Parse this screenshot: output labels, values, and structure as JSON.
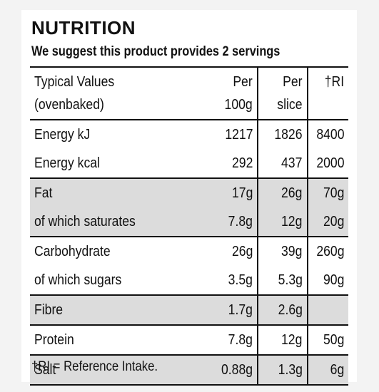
{
  "title": "NUTRITION",
  "subtitle": "We suggest this product provides 2 servings",
  "header": {
    "label_line1": "Typical Values",
    "label_line2": "(ovenbaked)",
    "per100_line1": "Per",
    "per100_line2": "100g",
    "slice_line1": "Per",
    "slice_line2": "slice",
    "ri": "†RI"
  },
  "rows": [
    {
      "group": "energy",
      "label": "Energy kJ",
      "per100": "1217",
      "slice": "1826",
      "ri": "8400"
    },
    {
      "group": "energy",
      "label": "Energy kcal",
      "per100": "292",
      "slice": "437",
      "ri": "2000"
    },
    {
      "group": "fat",
      "label": "Fat",
      "per100": "17g",
      "slice": "26g",
      "ri": "70g"
    },
    {
      "group": "fat",
      "label": "of which saturates",
      "per100": "7.8g",
      "slice": "12g",
      "ri": "20g"
    },
    {
      "group": "carb",
      "label": "Carbohydrate",
      "per100": "26g",
      "slice": "39g",
      "ri": "260g"
    },
    {
      "group": "carb",
      "label": "of which sugars",
      "per100": "3.5g",
      "slice": "5.3g",
      "ri": "90g"
    },
    {
      "group": "fibre",
      "label": "Fibre",
      "per100": "1.7g",
      "slice": "2.6g",
      "ri": ""
    },
    {
      "group": "protein",
      "label": "Protein",
      "per100": "7.8g",
      "slice": "12g",
      "ri": "50g"
    },
    {
      "group": "salt",
      "label": "Salt",
      "per100": "0.88g",
      "slice": "1.3g",
      "ri": "6g"
    }
  ],
  "footnote": "†RI = Reference Intake.",
  "colors": {
    "shaded_row": "#dcdcdc",
    "rule": "#111111"
  }
}
